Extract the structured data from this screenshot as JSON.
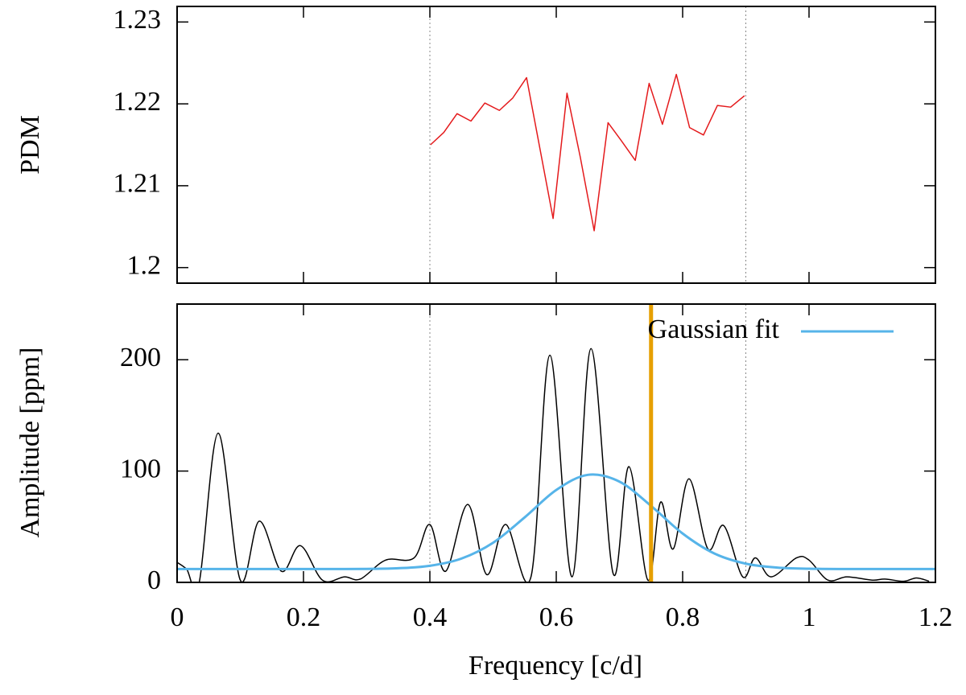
{
  "chart_data": [
    {
      "type": "line",
      "ylabel": "PDM",
      "xlim": [
        0,
        1.2
      ],
      "xticks": [
        0,
        0.2,
        0.4,
        0.6,
        0.8,
        1,
        1.2
      ],
      "ylim": [
        1.1981,
        1.2319
      ],
      "yticks": [
        1.2,
        1.21,
        1.22,
        1.23
      ],
      "vlines": [
        0.4,
        0.9
      ],
      "series": [
        {
          "color": "#e41a1c",
          "smooth": false,
          "x": [
            0.401,
            0.422,
            0.443,
            0.465,
            0.487,
            0.51,
            0.531,
            0.553,
            0.595,
            0.617,
            0.638,
            0.66,
            0.682,
            0.703,
            0.725,
            0.747,
            0.768,
            0.79,
            0.811,
            0.833,
            0.855,
            0.876,
            0.898
          ],
          "values": [
            1.215,
            1.2165,
            1.2188,
            1.2179,
            1.2201,
            1.2192,
            1.2207,
            1.2232,
            1.206,
            1.2213,
            1.2135,
            1.2045,
            1.2177,
            1.2155,
            1.2131,
            1.2225,
            1.2175,
            1.2236,
            1.2171,
            1.2162,
            1.2198,
            1.2196,
            1.221
          ]
        }
      ]
    },
    {
      "type": "line",
      "xlabel": "Frequency [c/d]",
      "ylabel": "Amplitude [ppm]",
      "xlim": [
        0,
        1.2
      ],
      "xticks": [
        0,
        0.2,
        0.4,
        0.6,
        0.8,
        1,
        1.2
      ],
      "ylim": [
        0,
        250
      ],
      "yticks": [
        0,
        100,
        200
      ],
      "vlines": [
        0.4,
        0.9
      ],
      "marker_line": {
        "value": 0.75,
        "color": "#e69f00"
      },
      "legend": "upper right",
      "series": [
        {
          "color": "#000000",
          "smooth": true,
          "x": [
            0,
            0.015,
            0.035,
            0.065,
            0.1,
            0.13,
            0.165,
            0.195,
            0.23,
            0.265,
            0.29,
            0.33,
            0.375,
            0.4,
            0.425,
            0.46,
            0.49,
            0.52,
            0.56,
            0.59,
            0.625,
            0.655,
            0.69,
            0.715,
            0.745,
            0.765,
            0.785,
            0.81,
            0.84,
            0.865,
            0.895,
            0.915,
            0.94,
            0.98,
            1.0,
            1.03,
            1.06,
            1.1,
            1.12,
            1.15,
            1.17,
            1.19
          ],
          "values": [
            18,
            12,
            0,
            134,
            2,
            55,
            10,
            33,
            2,
            5,
            3,
            20,
            22,
            52,
            10,
            70,
            7,
            52,
            5,
            204,
            5,
            210,
            8,
            104,
            2,
            72,
            30,
            93,
            30,
            51,
            5,
            22,
            5,
            22,
            20,
            2,
            5,
            2,
            3,
            1,
            4,
            1
          ]
        },
        {
          "name": "Gaussian fit",
          "color": "#56b4e9",
          "smooth": true,
          "x": [
            0,
            0.05,
            0.1,
            0.15,
            0.2,
            0.25,
            0.3,
            0.35,
            0.4,
            0.45,
            0.5,
            0.55,
            0.6,
            0.65,
            0.7,
            0.75,
            0.8,
            0.85,
            0.9,
            0.95,
            1.0,
            1.05,
            1.1,
            1.15,
            1.2
          ],
          "values": [
            12,
            12,
            12,
            12,
            12,
            12,
            12.1,
            12.7,
            14.9,
            21.4,
            35.6,
            58.4,
            83,
            96.6,
            90.5,
            68.7,
            43.9,
            26,
            16.8,
            13.3,
            12.3,
            12,
            12,
            12,
            12
          ]
        }
      ]
    }
  ]
}
